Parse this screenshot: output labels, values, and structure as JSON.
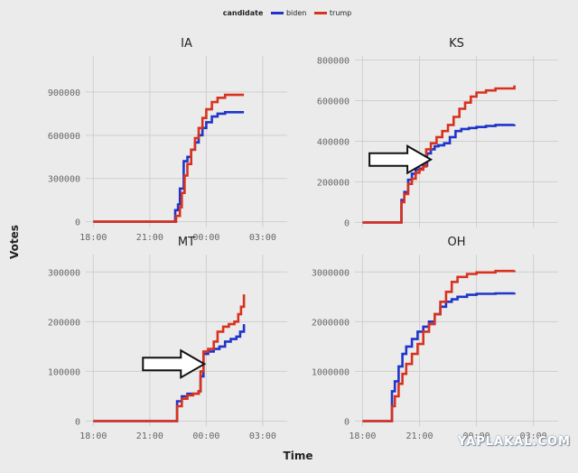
{
  "legend": {
    "title": "candidate",
    "items": [
      {
        "label": "biden",
        "color": "#1f35c9"
      },
      {
        "label": "trump",
        "color": "#d8321e"
      }
    ]
  },
  "ylabel": "Votes",
  "xlabel": "Time",
  "watermark": "YAPLAKAL.COM",
  "arrow_color": "#111111",
  "chart_data": [
    {
      "type": "line",
      "title": "IA",
      "x_ticks": [
        "18:00",
        "21:00",
        "00:00",
        "03:00"
      ],
      "x_tick_hours": [
        18,
        21,
        24,
        27
      ],
      "xlim_hours": [
        17.6,
        28.3
      ],
      "y_ticks": [
        0,
        300000,
        600000,
        900000
      ],
      "y_tick_labels": [
        "0",
        "300000",
        "600000",
        "900000"
      ],
      "ylim": [
        -40000,
        1150000
      ],
      "arrow_at": null,
      "series": [
        {
          "name": "biden",
          "points": [
            [
              18.0,
              0
            ],
            [
              22.3,
              0
            ],
            [
              22.35,
              80000
            ],
            [
              22.5,
              120000
            ],
            [
              22.6,
              230000
            ],
            [
              22.8,
              420000
            ],
            [
              23.0,
              450000
            ],
            [
              23.2,
              500000
            ],
            [
              23.4,
              550000
            ],
            [
              23.6,
              600000
            ],
            [
              23.8,
              650000
            ],
            [
              24.0,
              690000
            ],
            [
              24.3,
              730000
            ],
            [
              24.6,
              750000
            ],
            [
              25.0,
              760000
            ],
            [
              26.0,
              760000
            ]
          ]
        },
        {
          "name": "trump",
          "points": [
            [
              18.0,
              0
            ],
            [
              22.3,
              0
            ],
            [
              22.4,
              40000
            ],
            [
              22.6,
              100000
            ],
            [
              22.7,
              200000
            ],
            [
              22.85,
              320000
            ],
            [
              23.0,
              400000
            ],
            [
              23.2,
              500000
            ],
            [
              23.4,
              580000
            ],
            [
              23.6,
              650000
            ],
            [
              23.8,
              720000
            ],
            [
              24.0,
              780000
            ],
            [
              24.3,
              830000
            ],
            [
              24.6,
              860000
            ],
            [
              25.0,
              880000
            ],
            [
              26.0,
              880000
            ]
          ]
        }
      ]
    },
    {
      "type": "line",
      "title": "KS",
      "x_ticks": [],
      "x_tick_hours": [
        18,
        21,
        24,
        27
      ],
      "xlim_hours": [
        17.6,
        28.3
      ],
      "y_ticks": [
        0,
        200000,
        400000,
        600000,
        800000
      ],
      "y_tick_labels": [
        "0",
        "200000",
        "400000",
        "600000",
        "800000"
      ],
      "ylim": [
        -25000,
        820000
      ],
      "arrow_at": [
        21.6,
        310000
      ],
      "series": [
        {
          "name": "biden",
          "points": [
            [
              18.0,
              0
            ],
            [
              20.0,
              0
            ],
            [
              20.05,
              110000
            ],
            [
              20.2,
              150000
            ],
            [
              20.4,
              210000
            ],
            [
              20.6,
              240000
            ],
            [
              20.8,
              260000
            ],
            [
              21.0,
              265000
            ],
            [
              21.2,
              280000
            ],
            [
              21.4,
              340000
            ],
            [
              21.6,
              360000
            ],
            [
              21.8,
              375000
            ],
            [
              22.0,
              380000
            ],
            [
              22.3,
              390000
            ],
            [
              22.6,
              420000
            ],
            [
              22.9,
              450000
            ],
            [
              23.2,
              460000
            ],
            [
              23.6,
              465000
            ],
            [
              24.0,
              470000
            ],
            [
              24.5,
              475000
            ],
            [
              25.0,
              480000
            ],
            [
              26.0,
              482000
            ]
          ]
        },
        {
          "name": "trump",
          "points": [
            [
              18.0,
              0
            ],
            [
              20.0,
              0
            ],
            [
              20.05,
              100000
            ],
            [
              20.2,
              140000
            ],
            [
              20.4,
              190000
            ],
            [
              20.6,
              215000
            ],
            [
              20.8,
              245000
            ],
            [
              21.0,
              260000
            ],
            [
              21.2,
              275000
            ],
            [
              21.35,
              360000
            ],
            [
              21.6,
              390000
            ],
            [
              21.9,
              420000
            ],
            [
              22.2,
              450000
            ],
            [
              22.5,
              480000
            ],
            [
              22.8,
              520000
            ],
            [
              23.1,
              560000
            ],
            [
              23.4,
              590000
            ],
            [
              23.7,
              620000
            ],
            [
              24.0,
              640000
            ],
            [
              24.5,
              650000
            ],
            [
              25.0,
              660000
            ],
            [
              26.0,
              675000
            ]
          ]
        }
      ]
    },
    {
      "type": "line",
      "title": "MT",
      "x_ticks": [
        "18:00",
        "21:00",
        "00:00",
        "03:00"
      ],
      "x_tick_hours": [
        18,
        21,
        24,
        27
      ],
      "xlim_hours": [
        17.6,
        28.3
      ],
      "y_ticks": [
        0,
        100000,
        200000,
        300000
      ],
      "y_tick_labels": [
        "0",
        "100000",
        "200000",
        "300000"
      ],
      "ylim": [
        -10000,
        335000
      ],
      "arrow_at": [
        23.9,
        115000
      ],
      "series": [
        {
          "name": "biden",
          "points": [
            [
              18.0,
              0
            ],
            [
              22.4,
              0
            ],
            [
              22.45,
              40000
            ],
            [
              22.7,
              50000
            ],
            [
              23.0,
              55000
            ],
            [
              23.3,
              55000
            ],
            [
              23.6,
              60000
            ],
            [
              23.7,
              90000
            ],
            [
              23.85,
              135000
            ],
            [
              24.1,
              140000
            ],
            [
              24.4,
              145000
            ],
            [
              24.7,
              150000
            ],
            [
              25.0,
              160000
            ],
            [
              25.3,
              165000
            ],
            [
              25.6,
              170000
            ],
            [
              25.8,
              180000
            ],
            [
              26.0,
              195000
            ]
          ]
        },
        {
          "name": "trump",
          "points": [
            [
              18.0,
              0
            ],
            [
              22.4,
              0
            ],
            [
              22.45,
              30000
            ],
            [
              22.7,
              45000
            ],
            [
              23.0,
              52000
            ],
            [
              23.3,
              55000
            ],
            [
              23.6,
              60000
            ],
            [
              23.7,
              100000
            ],
            [
              23.85,
              140000
            ],
            [
              24.1,
              145000
            ],
            [
              24.4,
              160000
            ],
            [
              24.6,
              180000
            ],
            [
              24.9,
              190000
            ],
            [
              25.2,
              195000
            ],
            [
              25.5,
              200000
            ],
            [
              25.7,
              215000
            ],
            [
              25.85,
              230000
            ],
            [
              26.0,
              255000
            ]
          ]
        }
      ]
    },
    {
      "type": "line",
      "title": "OH",
      "x_ticks": [
        "18:00",
        "21:00",
        "00:00",
        "03:00"
      ],
      "x_tick_hours": [
        18,
        21,
        24,
        27
      ],
      "xlim_hours": [
        17.6,
        28.3
      ],
      "y_ticks": [
        0,
        1000000,
        2000000,
        3000000
      ],
      "y_tick_labels": [
        "0",
        "1000000",
        "2000000",
        "3000000"
      ],
      "ylim": [
        -100000,
        3350000
      ],
      "arrow_at": null,
      "series": [
        {
          "name": "biden",
          "points": [
            [
              18.0,
              0
            ],
            [
              19.5,
              0
            ],
            [
              19.55,
              600000
            ],
            [
              19.7,
              800000
            ],
            [
              19.9,
              1100000
            ],
            [
              20.1,
              1350000
            ],
            [
              20.3,
              1500000
            ],
            [
              20.6,
              1650000
            ],
            [
              20.9,
              1800000
            ],
            [
              21.2,
              1900000
            ],
            [
              21.5,
              2000000
            ],
            [
              21.8,
              2150000
            ],
            [
              22.1,
              2300000
            ],
            [
              22.4,
              2400000
            ],
            [
              22.7,
              2450000
            ],
            [
              23.0,
              2500000
            ],
            [
              23.5,
              2540000
            ],
            [
              24.0,
              2560000
            ],
            [
              25.0,
              2570000
            ],
            [
              26.0,
              2580000
            ]
          ]
        },
        {
          "name": "trump",
          "points": [
            [
              18.0,
              0
            ],
            [
              19.5,
              0
            ],
            [
              19.55,
              300000
            ],
            [
              19.7,
              500000
            ],
            [
              19.9,
              750000
            ],
            [
              20.1,
              950000
            ],
            [
              20.3,
              1150000
            ],
            [
              20.6,
              1350000
            ],
            [
              20.9,
              1550000
            ],
            [
              21.2,
              1800000
            ],
            [
              21.5,
              1950000
            ],
            [
              21.8,
              2150000
            ],
            [
              22.1,
              2400000
            ],
            [
              22.4,
              2600000
            ],
            [
              22.7,
              2800000
            ],
            [
              23.0,
              2900000
            ],
            [
              23.5,
              2960000
            ],
            [
              24.0,
              2990000
            ],
            [
              25.0,
              3020000
            ],
            [
              26.0,
              3030000
            ]
          ]
        }
      ]
    }
  ]
}
